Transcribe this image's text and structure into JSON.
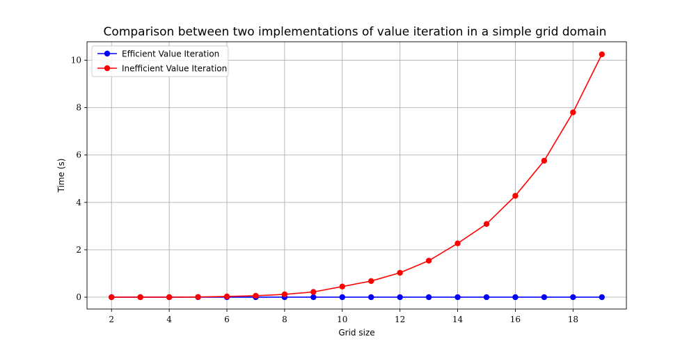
{
  "chart_data": {
    "type": "line",
    "title": "Comparison between two implementations of value iteration in a simple grid domain",
    "xlabel": "Grid size",
    "ylabel": "Time (s)",
    "xlim": [
      1.15,
      19.85
    ],
    "ylim": [
      -0.5,
      10.78
    ],
    "x_ticks": [
      2,
      4,
      6,
      8,
      10,
      12,
      14,
      16,
      18
    ],
    "y_ticks": [
      0,
      2,
      4,
      6,
      8,
      10
    ],
    "grid": true,
    "legend_position": "top-left",
    "x": [
      2,
      3,
      4,
      5,
      6,
      7,
      8,
      9,
      10,
      11,
      12,
      13,
      14,
      15,
      16,
      17,
      18,
      19
    ],
    "series": [
      {
        "name": "Efficient Value Iteration",
        "color": "#0000ff",
        "values": [
          0,
          0,
          0,
          0,
          0,
          0,
          0,
          0,
          0,
          0,
          0,
          0,
          0,
          0,
          0,
          0,
          0,
          0
        ]
      },
      {
        "name": "Inefficient Value Iteration",
        "color": "#ff0000",
        "values": [
          0,
          0,
          0,
          0.01,
          0.03,
          0.06,
          0.12,
          0.22,
          0.45,
          0.68,
          1.03,
          1.54,
          2.27,
          3.09,
          4.28,
          5.76,
          7.8,
          10.25
        ]
      }
    ]
  }
}
